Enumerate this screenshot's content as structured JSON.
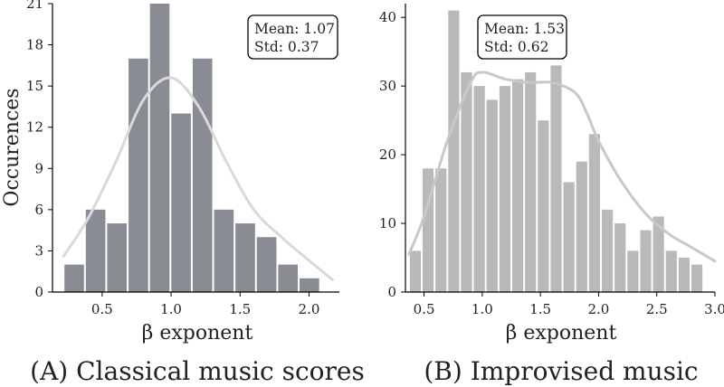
{
  "figure": {
    "ylabel": "Occurences"
  },
  "chart_data": [
    {
      "type": "bar",
      "panel_label": "(A) Classical music scores",
      "xlabel": "β exponent",
      "ylabel": "Occurences",
      "xlim": [
        0.14,
        2.22
      ],
      "ylim": [
        0,
        21
      ],
      "xticks": [
        0.5,
        1.0,
        1.5,
        2.0
      ],
      "xtick_labels": [
        "0.5",
        "1.0",
        "1.5",
        "2.0"
      ],
      "yticks": [
        0,
        3,
        6,
        9,
        12,
        15,
        18,
        21
      ],
      "ytick_labels": [
        "0",
        "3",
        "6",
        "9",
        "12",
        "15",
        "18",
        "21"
      ],
      "bar_color": "#8a8c93",
      "bar_edges": [
        0.22,
        0.375,
        0.53,
        0.685,
        0.84,
        0.995,
        1.15,
        1.305,
        1.46,
        1.615,
        1.77,
        1.925,
        2.08,
        2.235
      ],
      "values": [
        2,
        6,
        5,
        17,
        21,
        13,
        17,
        6,
        5,
        4,
        2,
        1,
        0
      ],
      "kde": {
        "color": "#d9d9d9",
        "x": [
          0.22,
          0.4,
          0.6,
          0.8,
          1.0,
          1.2,
          1.4,
          1.6,
          1.8,
          2.0,
          2.17
        ],
        "y": [
          2.6,
          5.4,
          9.5,
          14.0,
          15.6,
          13.5,
          9.5,
          6.0,
          4.0,
          2.3,
          0.9
        ]
      },
      "stats": {
        "mean": "Mean: 1.07",
        "std": "Std: 0.37"
      }
    },
    {
      "type": "bar",
      "panel_label": "(B) Improvised music",
      "xlabel": "β exponent",
      "xlim": [
        0.34,
        3.0
      ],
      "ylim": [
        0,
        42
      ],
      "xticks": [
        0.5,
        1.0,
        1.5,
        2.0,
        2.5,
        3.0
      ],
      "xtick_labels": [
        "0.5",
        "1.0",
        "1.5",
        "2.0",
        "2.5",
        "3.0"
      ],
      "yticks": [
        0,
        10,
        20,
        30,
        40
      ],
      "ytick_labels": [
        "0",
        "10",
        "20",
        "30",
        "40"
      ],
      "bar_color": "#b9b9bb",
      "bar_edges": [
        0.37,
        0.48,
        0.59,
        0.7,
        0.81,
        0.92,
        1.03,
        1.14,
        1.25,
        1.36,
        1.47,
        1.58,
        1.69,
        1.8,
        1.91,
        2.02,
        2.13,
        2.24,
        2.35,
        2.46,
        2.57,
        2.68,
        2.79,
        2.9
      ],
      "values": [
        6,
        18,
        18,
        41,
        32,
        30,
        28,
        30,
        31,
        32,
        25,
        33,
        16,
        19,
        23,
        12,
        10,
        6,
        9,
        11,
        6,
        5,
        4
      ],
      "kde": {
        "color": "#c8c8c8",
        "x": [
          0.37,
          0.5,
          0.7,
          0.9,
          1.0,
          1.2,
          1.4,
          1.6,
          1.8,
          1.9,
          2.0,
          2.2,
          2.4,
          2.6,
          2.8,
          3.0
        ],
        "y": [
          5.5,
          11,
          22,
          30.5,
          32,
          31,
          30.5,
          30.5,
          29,
          26,
          22,
          16,
          11.5,
          8.5,
          6.5,
          4.5
        ]
      },
      "stats": {
        "mean": "Mean: 1.53",
        "std": "Std: 0.62"
      }
    }
  ]
}
